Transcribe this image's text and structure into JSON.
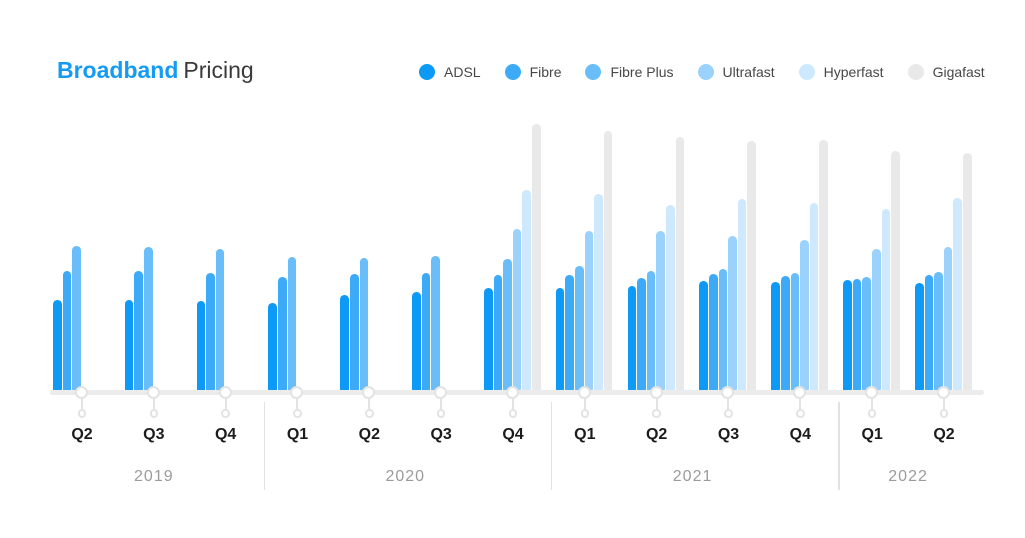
{
  "title": {
    "highlight": "Broadband",
    "rest": "Pricing"
  },
  "legend": [
    {
      "name": "ADSL",
      "color": "#0D99F6"
    },
    {
      "name": "Fibre",
      "color": "#3DAAF7"
    },
    {
      "name": "Fibre Plus",
      "color": "#69BDF9"
    },
    {
      "name": "Ultrafast",
      "color": "#9AD2FB"
    },
    {
      "name": "Hyperfast",
      "color": "#CEE9FD"
    },
    {
      "name": "Gigafast",
      "color": "#E9E9E9"
    }
  ],
  "chart_data": {
    "type": "bar",
    "title": "Broadband Pricing",
    "legend_position": "top",
    "grid": false,
    "y_axis_shown": false,
    "values_unit": "relative bar height in px (chart displays no numeric y-axis)",
    "series": [
      "ADSL",
      "Fibre",
      "Fibre Plus",
      "Ultrafast",
      "Hyperfast",
      "Gigafast"
    ],
    "series_colors": {
      "ADSL": "#0D99F6",
      "Fibre": "#3DAAF7",
      "Fibre Plus": "#69BDF9",
      "Ultrafast": "#9AD2FB",
      "Hyperfast": "#CEE9FD",
      "Gigafast": "#E9E9E9"
    },
    "years": [
      {
        "year": "2019",
        "quarters": [
          {
            "label": "Q2",
            "values": [
              92,
              121,
              146
            ]
          },
          {
            "label": "Q3",
            "values": [
              92,
              121,
              145
            ]
          },
          {
            "label": "Q4",
            "values": [
              91,
              119,
              143
            ]
          }
        ]
      },
      {
        "year": "2020",
        "quarters": [
          {
            "label": "Q1",
            "values": [
              89,
              115,
              135
            ]
          },
          {
            "label": "Q2",
            "values": [
              97,
              118,
              134
            ]
          },
          {
            "label": "Q3",
            "values": [
              100,
              119,
              136
            ]
          },
          {
            "label": "Q4",
            "values": [
              104,
              117,
              133,
              163,
              202,
              268
            ]
          }
        ]
      },
      {
        "year": "2021",
        "quarters": [
          {
            "label": "Q1",
            "values": [
              104,
              117,
              126,
              161,
              198,
              261
            ]
          },
          {
            "label": "Q2",
            "values": [
              106,
              114,
              121,
              161,
              187,
              255
            ]
          },
          {
            "label": "Q3",
            "values": [
              111,
              118,
              123,
              156,
              193,
              251
            ]
          },
          {
            "label": "Q4",
            "values": [
              110,
              116,
              119,
              152,
              189,
              252
            ]
          }
        ]
      },
      {
        "year": "2022",
        "quarters": [
          {
            "label": "Q1",
            "values": [
              112,
              113,
              115,
              143,
              183,
              241
            ]
          },
          {
            "label": "Q2",
            "values": [
              109,
              117,
              120,
              145,
              194,
              239
            ]
          }
        ]
      }
    ]
  },
  "colors": {
    "background": "#FFFFFF",
    "title_highlight": "#169BF4",
    "title_text": "#3A3A3A",
    "legend_text": "#474747",
    "quarter_label": "#1C1C1E",
    "year_label": "#9B9B9B",
    "axis_line": "#ECECEC",
    "marker_ring": "#E3E3E3",
    "year_divider": "#E2E2E2"
  }
}
